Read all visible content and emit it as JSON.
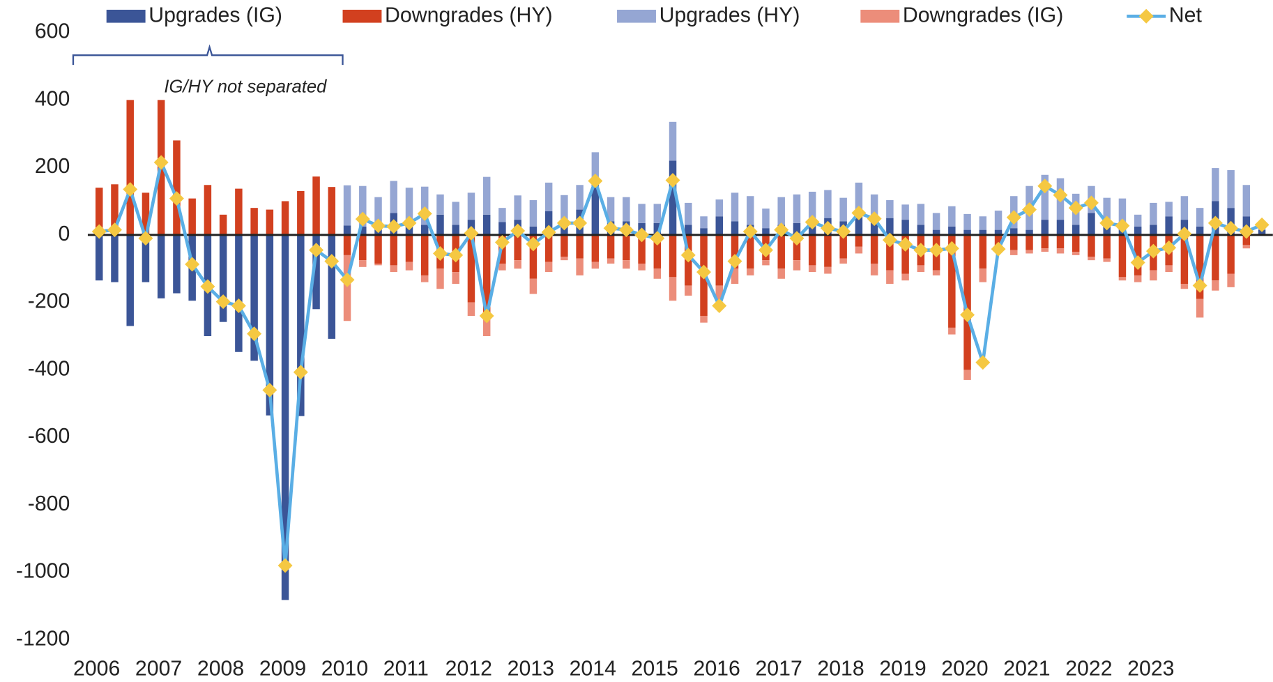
{
  "chart_data": {
    "type": "bar",
    "annotation": "IG/HY not separated",
    "categories": [
      "2006",
      null,
      null,
      null,
      "2007",
      null,
      null,
      null,
      "2008",
      null,
      null,
      null,
      "2009",
      null,
      null,
      null,
      "2010",
      null,
      null,
      null,
      "2011",
      null,
      null,
      null,
      "2012",
      null,
      null,
      null,
      "2013",
      null,
      null,
      null,
      "2014",
      null,
      null,
      null,
      "2015",
      null,
      null,
      null,
      "2016",
      null,
      null,
      null,
      "2017",
      null,
      null,
      null,
      "2018",
      null,
      null,
      null,
      "2019",
      null,
      null,
      null,
      "2020",
      null,
      null,
      null,
      "2021",
      null,
      null,
      null,
      "2022",
      null,
      null,
      null,
      "2023",
      null,
      null,
      null,
      null,
      null,
      null,
      null
    ],
    "ylim": [
      -1200,
      600
    ],
    "yticks": [
      600,
      400,
      200,
      0,
      -200,
      -400,
      -600,
      -800,
      -1000,
      -1200
    ],
    "series": [
      {
        "name": "Upgrades (IG)",
        "color": "#3b5597",
        "values": [
          -135,
          -140,
          -270,
          -140,
          -188,
          -173,
          -195,
          -300,
          -258,
          -347,
          -373,
          -535,
          -1082,
          -537,
          -220,
          -308,
          28,
          25,
          20,
          65,
          30,
          30,
          60,
          30,
          45,
          60,
          38,
          45,
          25,
          70,
          40,
          75,
          160,
          40,
          40,
          35,
          35,
          220,
          30,
          20,
          55,
          40,
          30,
          20,
          30,
          35,
          40,
          50,
          40,
          65,
          55,
          50,
          45,
          30,
          15,
          25,
          15,
          15,
          15,
          20,
          15,
          45,
          45,
          30,
          65,
          30,
          30,
          25,
          30,
          55,
          45,
          25,
          100,
          80,
          55,
          15
        ]
      },
      {
        "name": "Downgrades (HY)",
        "color": "#d2401f",
        "values": [
          140,
          150,
          400,
          125,
          400,
          280,
          108,
          148,
          60,
          137,
          80,
          75,
          100,
          130,
          173,
          142,
          -60,
          -75,
          -85,
          -90,
          -80,
          -120,
          -100,
          -110,
          -200,
          -230,
          -85,
          -75,
          -130,
          -80,
          -65,
          -70,
          -80,
          -70,
          -75,
          -85,
          -100,
          -125,
          -150,
          -240,
          -150,
          -100,
          -100,
          -75,
          -100,
          -75,
          -90,
          -95,
          -70,
          -35,
          -85,
          -105,
          -115,
          -90,
          -105,
          -275,
          -400,
          -100,
          -35,
          -45,
          -45,
          -40,
          -40,
          -50,
          -65,
          -70,
          -125,
          -120,
          -105,
          -90,
          -145,
          -190,
          -135,
          -115,
          -30,
          0
        ]
      },
      {
        "name": "Upgrades (HY)",
        "color": "#95a6d3",
        "values": [
          null,
          null,
          null,
          null,
          null,
          null,
          null,
          null,
          null,
          null,
          null,
          null,
          null,
          null,
          null,
          null,
          119,
          120,
          92,
          95,
          110,
          113,
          60,
          68,
          80,
          112,
          42,
          72,
          78,
          85,
          78,
          73,
          85,
          72,
          72,
          57,
          57,
          115,
          65,
          35,
          50,
          85,
          85,
          58,
          82,
          85,
          88,
          83,
          70,
          90,
          65,
          53,
          45,
          62,
          50,
          60,
          47,
          40,
          57,
          95,
          130,
          133,
          123,
          92,
          80,
          80,
          78,
          35,
          65,
          43,
          70,
          55,
          98,
          112,
          93,
          15
        ]
      },
      {
        "name": "Downgrades (IG)",
        "color": "#ec8d7a",
        "values": [
          null,
          null,
          null,
          null,
          null,
          null,
          null,
          null,
          null,
          null,
          null,
          null,
          null,
          null,
          null,
          null,
          -195,
          -20,
          -5,
          -20,
          -25,
          -20,
          -60,
          -35,
          -40,
          -70,
          -20,
          -25,
          -45,
          -30,
          -10,
          -50,
          -20,
          -15,
          -25,
          -20,
          -30,
          -70,
          -30,
          -20,
          -45,
          -45,
          -20,
          -15,
          -30,
          -30,
          -20,
          -20,
          -15,
          -20,
          -35,
          -40,
          -20,
          -20,
          -15,
          -20,
          -30,
          -40,
          -10,
          -15,
          -10,
          -10,
          -15,
          -10,
          -10,
          -10,
          -10,
          -20,
          -30,
          -20,
          -15,
          -55,
          -30,
          -40,
          -10,
          0
        ]
      },
      {
        "name": "Net",
        "type": "line",
        "color": "#5aaee5",
        "marker_color": "#f5c842",
        "values": [
          10,
          15,
          135,
          -10,
          215,
          108,
          -87,
          -153,
          -198,
          -210,
          -293,
          -460,
          -980,
          -407,
          -45,
          -78,
          -133,
          47,
          27,
          25,
          35,
          63,
          -55,
          -60,
          5,
          -240,
          -22,
          12,
          -27,
          8,
          35,
          35,
          160,
          20,
          15,
          0,
          -10,
          162,
          -60,
          -110,
          -210,
          -78,
          10,
          -45,
          15,
          -10,
          38,
          20,
          10,
          65,
          48,
          -15,
          -28,
          -45,
          -45,
          -40,
          -237,
          -378,
          -42,
          52,
          75,
          145,
          118,
          80,
          95,
          35,
          27,
          -82,
          -48,
          -38,
          3,
          -150,
          35,
          20,
          10,
          30
        ]
      }
    ]
  }
}
